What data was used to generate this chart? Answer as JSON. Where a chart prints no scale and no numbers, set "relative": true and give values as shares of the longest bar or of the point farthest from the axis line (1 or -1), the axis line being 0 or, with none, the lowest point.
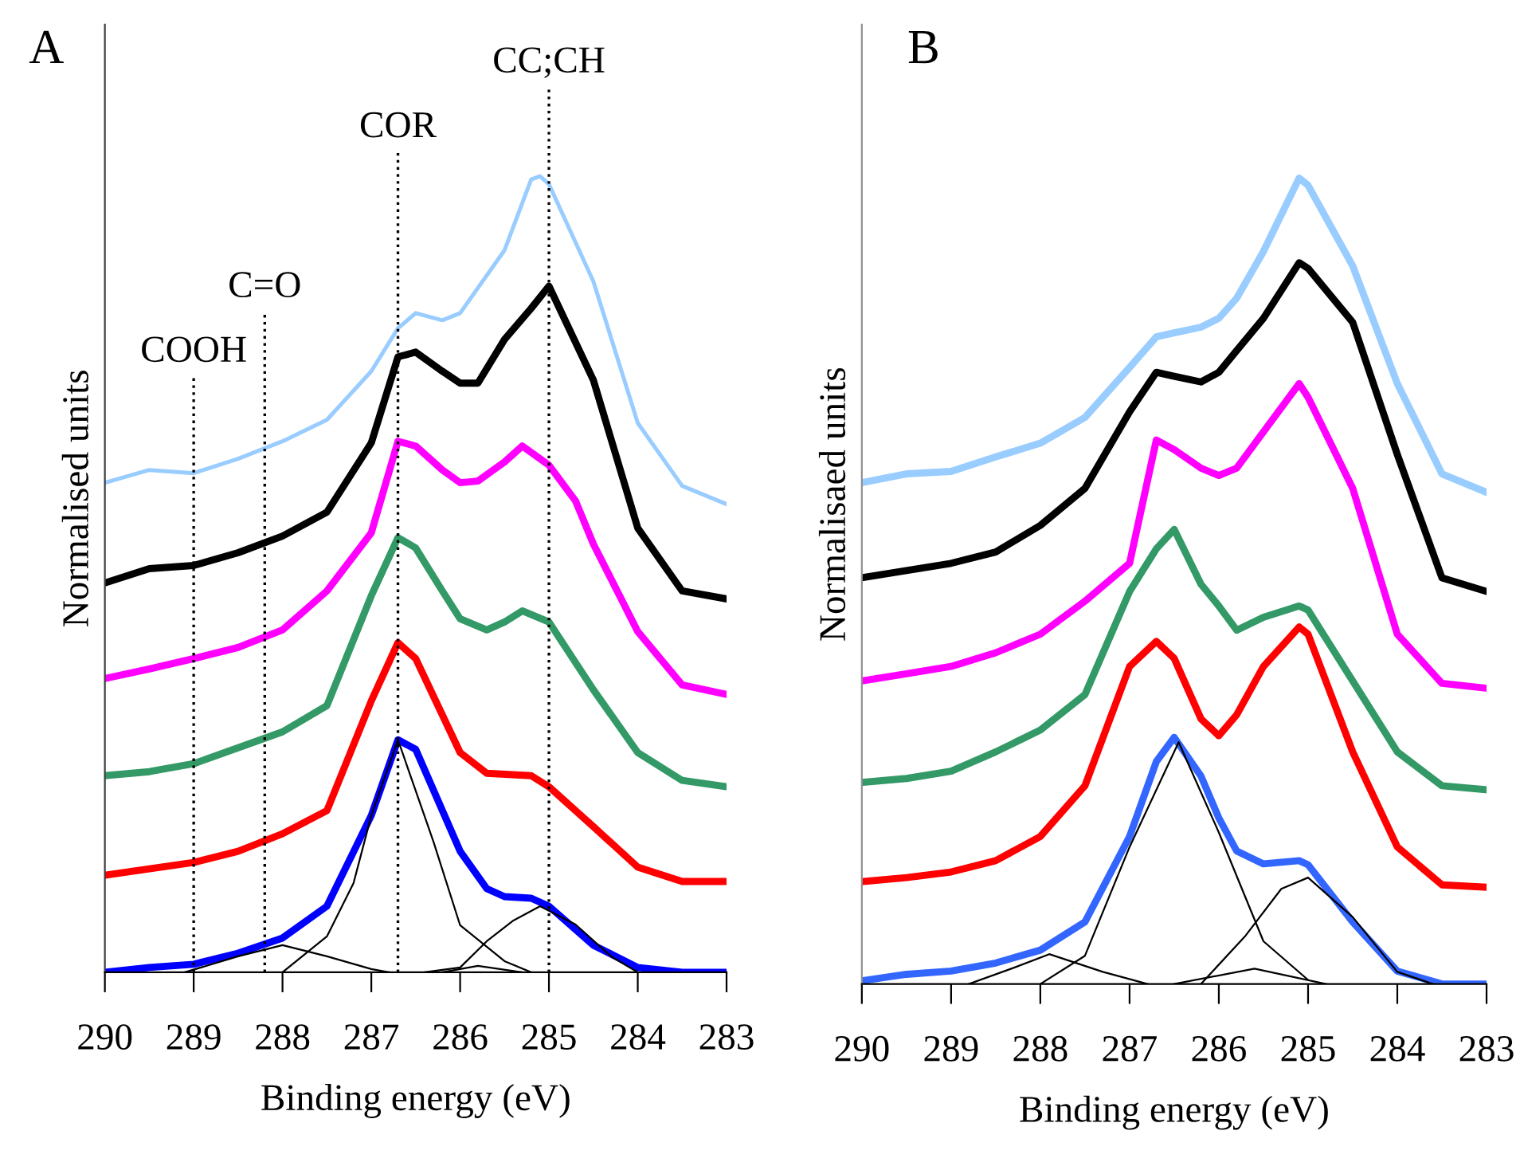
{
  "chart_data": [
    {
      "type": "line",
      "title": "A",
      "xlabel": "Binding energy (eV)",
      "ylabel": "Normalised units",
      "relative": true,
      "tick_labels": "x",
      "grid": false,
      "xlim": [
        290,
        283
      ],
      "xticks": [
        290,
        289,
        288,
        287,
        286,
        285,
        284,
        283
      ],
      "ref_lines": [
        {
          "axis": "x",
          "value": 289.0,
          "label": "COOH",
          "line_style": "dotted"
        },
        {
          "axis": "x",
          "value": 288.2,
          "label": "C=O",
          "line_style": "dotted"
        },
        {
          "axis": "x",
          "value": 286.7,
          "label": "COR",
          "line_style": "dotted"
        },
        {
          "axis": "x",
          "value": 285.0,
          "label": "CC;CH",
          "line_style": "dotted"
        }
      ],
      "series": [
        {
          "color": "#99ccff",
          "x": [
            290,
            289.5,
            289,
            288.5,
            288,
            287.5,
            287,
            286.7,
            286.5,
            286.2,
            286,
            285.5,
            285.2,
            285.1,
            285,
            284.5,
            284,
            283.5,
            283
          ],
          "values": [
            0.615,
            0.631,
            0.627,
            0.645,
            0.667,
            0.694,
            0.755,
            0.809,
            0.828,
            0.819,
            0.828,
            0.907,
            0.996,
            1.0,
            0.99,
            0.868,
            0.69,
            0.611,
            0.588
          ]
        },
        {
          "color": "#000000",
          "x": [
            290,
            289.5,
            289,
            288.5,
            288,
            287.5,
            287,
            286.7,
            286.5,
            286.2,
            286,
            285.8,
            285.5,
            285.2,
            285,
            284.5,
            284,
            283.5,
            283
          ],
          "values": [
            0.489,
            0.507,
            0.511,
            0.527,
            0.548,
            0.578,
            0.665,
            0.773,
            0.779,
            0.755,
            0.74,
            0.74,
            0.795,
            0.834,
            0.862,
            0.744,
            0.558,
            0.479,
            0.469
          ]
        },
        {
          "color": "#ff00ff",
          "x": [
            290,
            289.5,
            289,
            288.5,
            288,
            287.5,
            287,
            286.7,
            286.5,
            286.2,
            286,
            285.8,
            285.5,
            285.3,
            285,
            284.7,
            284.5,
            284,
            283.5,
            283
          ],
          "values": [
            0.369,
            0.381,
            0.394,
            0.408,
            0.43,
            0.479,
            0.552,
            0.667,
            0.661,
            0.631,
            0.615,
            0.617,
            0.641,
            0.661,
            0.637,
            0.592,
            0.538,
            0.428,
            0.361,
            0.349
          ]
        },
        {
          "color": "#339966",
          "x": [
            290,
            289.5,
            289,
            288.5,
            288,
            287.5,
            287,
            286.7,
            286.5,
            286.2,
            286,
            285.7,
            285.5,
            285.3,
            285,
            284.5,
            284,
            283.5,
            283
          ],
          "values": [
            0.247,
            0.252,
            0.262,
            0.282,
            0.302,
            0.335,
            0.473,
            0.546,
            0.533,
            0.479,
            0.444,
            0.43,
            0.44,
            0.454,
            0.44,
            0.355,
            0.276,
            0.241,
            0.233
          ]
        },
        {
          "color": "#ff0000",
          "x": [
            290,
            289.5,
            289,
            288.5,
            288,
            287.5,
            287,
            286.7,
            286.5,
            286,
            285.7,
            285.2,
            285,
            284.5,
            284,
            283.5,
            283
          ],
          "values": [
            0.122,
            0.13,
            0.138,
            0.152,
            0.174,
            0.203,
            0.341,
            0.414,
            0.394,
            0.276,
            0.25,
            0.247,
            0.233,
            0.183,
            0.132,
            0.114,
            0.114
          ]
        },
        {
          "color": "#0000ff",
          "x": [
            290,
            289.5,
            289,
            288.5,
            288,
            287.5,
            287,
            286.7,
            286.5,
            286,
            285.7,
            285.5,
            285.2,
            285,
            284.5,
            284,
            283.5,
            283
          ],
          "values": [
            0.0,
            0.006,
            0.01,
            0.024,
            0.043,
            0.083,
            0.197,
            0.292,
            0.28,
            0.152,
            0.105,
            0.095,
            0.093,
            0.083,
            0.034,
            0.006,
            0.0,
            0.0
          ]
        },
        {
          "color": "#000000",
          "x": [
            288,
            287.5,
            287.2,
            287,
            286.7,
            286.3,
            286,
            285.5,
            285.2
          ],
          "values": [
            0.0,
            0.045,
            0.112,
            0.197,
            0.292,
            0.164,
            0.059,
            0.014,
            0.0
          ]
        },
        {
          "color": "#000000",
          "x": [
            289.1,
            288.5,
            288,
            287.5,
            287,
            286.8
          ],
          "values": [
            0.0,
            0.02,
            0.034,
            0.02,
            0.004,
            0.0
          ]
        },
        {
          "color": "#000000",
          "x": [
            286.4,
            286,
            285.7,
            285.4,
            285.1,
            284.7,
            284.3,
            284
          ],
          "values": [
            0.0,
            0.006,
            0.039,
            0.065,
            0.083,
            0.06,
            0.02,
            0.0
          ]
        },
        {
          "color": "#000000",
          "x": [
            286.2,
            285.8,
            285.3
          ],
          "values": [
            0.0,
            0.008,
            0.0
          ]
        }
      ]
    },
    {
      "type": "line",
      "title": "B",
      "xlabel": "Binding energy (eV)",
      "ylabel": "Normalisaed units",
      "relative": true,
      "tick_labels": "x",
      "grid": false,
      "xlim": [
        290,
        283
      ],
      "xticks": [
        290,
        289,
        288,
        287,
        286,
        285,
        284,
        283
      ],
      "series": [
        {
          "color": "#99ccff",
          "x": [
            290,
            289.5,
            289,
            288.5,
            288,
            287.5,
            287,
            286.7,
            286.5,
            286.2,
            286,
            285.8,
            285.5,
            285.1,
            285,
            284.5,
            284,
            283.5,
            283
          ],
          "values": [
            0.622,
            0.633,
            0.636,
            0.654,
            0.671,
            0.703,
            0.765,
            0.803,
            0.808,
            0.815,
            0.826,
            0.851,
            0.909,
            1.0,
            0.991,
            0.891,
            0.745,
            0.633,
            0.61
          ]
        },
        {
          "color": "#000000",
          "x": [
            290,
            289.5,
            289,
            288.5,
            288,
            287.5,
            287,
            286.7,
            286.5,
            286.2,
            286,
            285.8,
            285.5,
            285.1,
            285,
            284.5,
            284,
            283.5,
            283
          ],
          "values": [
            0.504,
            0.513,
            0.522,
            0.536,
            0.569,
            0.615,
            0.71,
            0.759,
            0.754,
            0.747,
            0.759,
            0.786,
            0.826,
            0.895,
            0.888,
            0.821,
            0.657,
            0.504,
            0.487
          ]
        },
        {
          "color": "#ff00ff",
          "x": [
            290,
            289.5,
            289,
            288.5,
            288,
            287.5,
            287,
            286.7,
            286.5,
            286.2,
            286,
            285.8,
            285.5,
            285.1,
            285,
            284.5,
            284,
            283.5,
            283
          ],
          "values": [
            0.376,
            0.385,
            0.394,
            0.411,
            0.434,
            0.475,
            0.522,
            0.675,
            0.663,
            0.64,
            0.631,
            0.64,
            0.685,
            0.745,
            0.728,
            0.615,
            0.434,
            0.373,
            0.367
          ]
        },
        {
          "color": "#339966",
          "x": [
            290,
            289.5,
            289,
            288.5,
            288,
            287.5,
            287,
            286.7,
            286.5,
            286.2,
            286,
            285.8,
            285.5,
            285.1,
            285,
            284.5,
            284,
            283.5,
            283
          ],
          "values": [
            0.25,
            0.255,
            0.264,
            0.288,
            0.315,
            0.359,
            0.487,
            0.54,
            0.564,
            0.496,
            0.469,
            0.439,
            0.455,
            0.469,
            0.464,
            0.376,
            0.288,
            0.246,
            0.241
          ]
        },
        {
          "color": "#ff0000",
          "x": [
            290,
            289.5,
            289,
            288.5,
            288,
            287.5,
            287,
            286.7,
            286.5,
            286.2,
            286,
            285.8,
            285.5,
            285.1,
            285,
            284.5,
            284,
            283.5,
            283
          ],
          "values": [
            0.127,
            0.132,
            0.139,
            0.153,
            0.183,
            0.246,
            0.394,
            0.425,
            0.404,
            0.329,
            0.308,
            0.334,
            0.394,
            0.443,
            0.434,
            0.288,
            0.17,
            0.123,
            0.12
          ]
        },
        {
          "color": "#3366ff",
          "x": [
            290,
            289.5,
            289,
            288.5,
            288,
            287.5,
            287,
            286.7,
            286.5,
            286.2,
            286,
            285.8,
            285.5,
            285.1,
            285,
            284.5,
            284,
            283.5,
            283
          ],
          "values": [
            0.004,
            0.012,
            0.016,
            0.026,
            0.042,
            0.077,
            0.183,
            0.276,
            0.306,
            0.258,
            0.206,
            0.165,
            0.149,
            0.153,
            0.148,
            0.077,
            0.016,
            0.0,
            0.0
          ]
        },
        {
          "color": "#000000",
          "x": [
            288,
            287.5,
            287,
            286.45,
            286,
            285.5,
            285
          ],
          "values": [
            0.0,
            0.035,
            0.17,
            0.3,
            0.188,
            0.053,
            0.005
          ]
        },
        {
          "color": "#000000",
          "x": [
            288.8,
            288.3,
            287.9,
            287.3,
            286.8
          ],
          "values": [
            0.0,
            0.02,
            0.037,
            0.015,
            0.0
          ]
        },
        {
          "color": "#000000",
          "x": [
            286.2,
            285.7,
            285.3,
            285.0,
            284.5,
            284,
            283.6
          ],
          "values": [
            0.0,
            0.06,
            0.118,
            0.132,
            0.083,
            0.015,
            0.0
          ]
        },
        {
          "color": "#000000",
          "x": [
            286.5,
            285.6,
            284.8
          ],
          "values": [
            0.0,
            0.019,
            0.0
          ]
        }
      ]
    }
  ]
}
